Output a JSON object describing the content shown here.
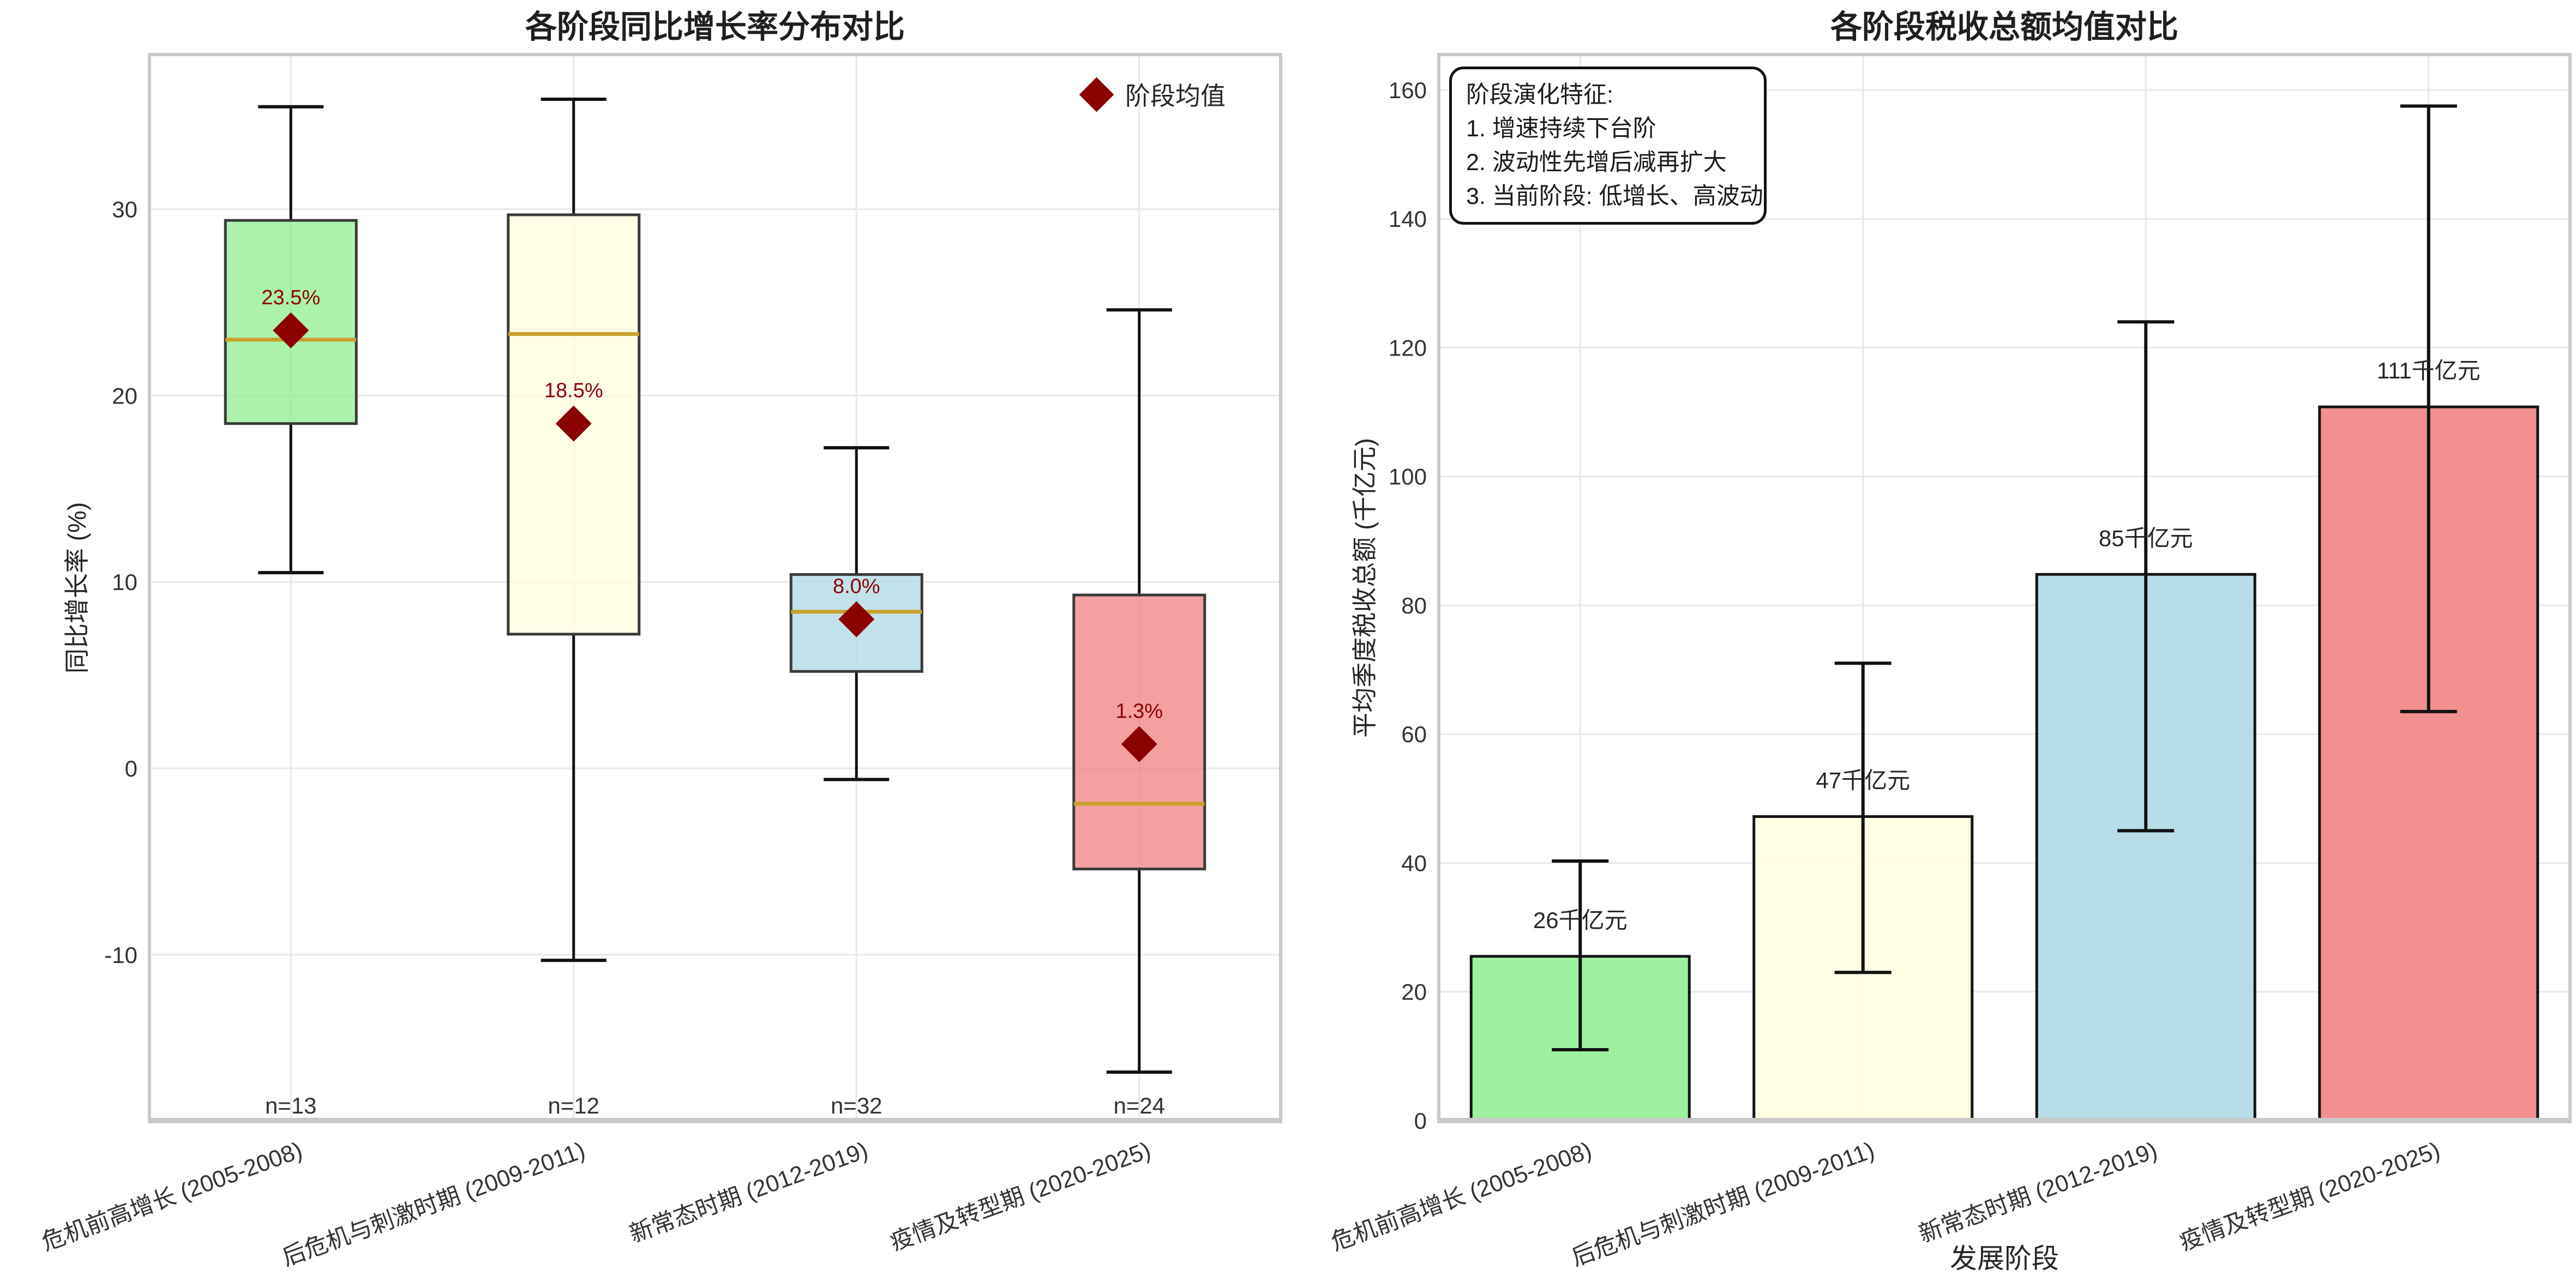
{
  "colors": {
    "mean_diamond": "#8B0000",
    "median_line": "#C8A02C",
    "grid": "#E8E8E8",
    "spine": "#C9C9C9",
    "tick_text": "#333333",
    "title_text": "#1F1F1F",
    "whisker": "#111111",
    "box_edge": "#3A3A3A",
    "bar_edge": "#141414"
  },
  "chart_data": [
    {
      "type": "box",
      "title": "各阶段同比增长率分布对比",
      "ylabel": "同比增长率 (%)",
      "ylim": [
        -18.9,
        38.3
      ],
      "yticks": [
        -10,
        0,
        10,
        20,
        30
      ],
      "grid": true,
      "legend": {
        "label": "阶段均值",
        "marker": "diamond",
        "color": "#8B0000",
        "position": "upper right"
      },
      "categories": [
        "危机前高增长 (2005-2008)",
        "后危机与刺激时期 (2009-2011)",
        "新常态时期 (2012-2019)",
        "疫情及转型期 (2020-2025)"
      ],
      "boxes": [
        {
          "category": "危机前高增长 (2005-2008)",
          "n_label": "n=13",
          "whisker_low": 10.5,
          "q1": 18.5,
          "median": 23.0,
          "q3": 29.4,
          "whisker_high": 35.5,
          "mean": 23.5,
          "mean_label": "23.5%",
          "color": "#90EE90"
        },
        {
          "category": "后危机与刺激时期 (2009-2011)",
          "n_label": "n=12",
          "whisker_low": -10.3,
          "q1": 7.2,
          "median": 23.3,
          "q3": 29.7,
          "whisker_high": 35.9,
          "mean": 18.5,
          "mean_label": "18.5%",
          "color": "#FFFFE0"
        },
        {
          "category": "新常态时期 (2012-2019)",
          "n_label": "n=32",
          "whisker_low": -0.6,
          "q1": 5.2,
          "median": 8.4,
          "q3": 10.4,
          "whisker_high": 17.2,
          "mean": 8.0,
          "mean_label": "8.0%",
          "color": "#ADD8E6"
        },
        {
          "category": "疫情及转型期 (2020-2025)",
          "n_label": "n=24",
          "whisker_low": -16.3,
          "q1": -5.4,
          "median": -1.9,
          "q3": 9.3,
          "whisker_high": 24.6,
          "mean": 1.3,
          "mean_label": "1.3%",
          "color": "#F08080"
        }
      ]
    },
    {
      "type": "bar",
      "title": "各阶段税收总额均值对比",
      "xlabel": "发展阶段",
      "ylabel": "平均季度税收总额 (千亿元)",
      "ylim": [
        0,
        165.5
      ],
      "yticks": [
        0,
        20,
        40,
        60,
        80,
        100,
        120,
        140,
        160
      ],
      "grid": true,
      "categories": [
        "危机前高增长 (2005-2008)",
        "后危机与刺激时期 (2009-2011)",
        "新常态时期 (2012-2019)",
        "疫情及转型期 (2020-2025)"
      ],
      "bars": [
        {
          "category": "危机前高增长 (2005-2008)",
          "value": 25.5,
          "value_label": "26千亿元",
          "err_low": 11.0,
          "err_high": 40.3,
          "color": "#90EE90"
        },
        {
          "category": "后危机与刺激时期 (2009-2011)",
          "value": 47.2,
          "value_label": "47千亿元",
          "err_low": 23.0,
          "err_high": 71.0,
          "color": "#FFFFE0"
        },
        {
          "category": "新常态时期 (2012-2019)",
          "value": 84.8,
          "value_label": "85千亿元",
          "err_low": 45.0,
          "err_high": 124.0,
          "color": "#ADD8E6"
        },
        {
          "category": "疫情及转型期 (2020-2025)",
          "value": 110.8,
          "value_label": "111千亿元",
          "err_low": 63.5,
          "err_high": 157.5,
          "color": "#F08080"
        }
      ],
      "annotation": {
        "lines": [
          "阶段演化特征:",
          "1. 增速持续下台阶",
          "2. 波动性先增后减再扩大",
          "3. 当前阶段: 低增长、高波动"
        ]
      }
    }
  ]
}
